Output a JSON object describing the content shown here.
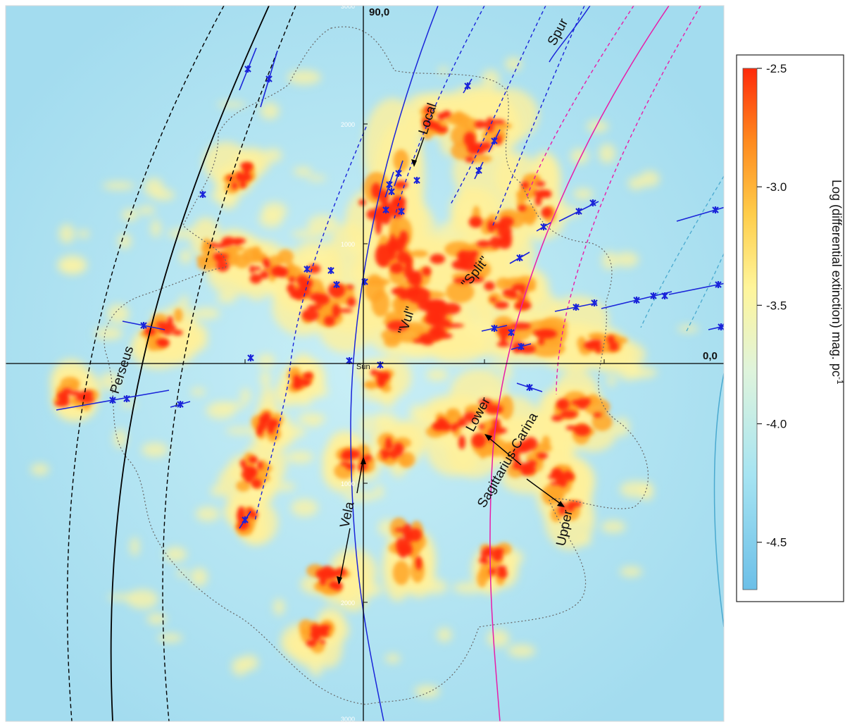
{
  "map": {
    "center_label": "Sun",
    "coord_top": "90,0",
    "coord_right": "0,0",
    "distance_ticks": [
      "3000",
      "2000",
      "1000",
      "1000",
      "2000",
      "3000"
    ]
  },
  "features": {
    "perseus": "Perseus",
    "local": "Local",
    "spur": "Spur",
    "vul": "\"Vul\"",
    "split": "\"Split\"",
    "vela": "Vela",
    "lower": "Lower",
    "upper": "Upper",
    "sagittarius_carina": "Sagittarius-Carina"
  },
  "colorbar": {
    "title": "Log (differential extinction) mag. pc",
    "title_superscript": "-1",
    "ticks": [
      "-2.5",
      "-3.0",
      "-3.5",
      "-4.0",
      "-4.5"
    ],
    "range": [
      -4.7,
      -2.5
    ],
    "colors": [
      "#6cbfe8",
      "#a6e4f2",
      "#dff4dc",
      "#fff59a",
      "#ffcd4a",
      "#ff8a1e",
      "#ff2a0a"
    ]
  },
  "colors": {
    "perseus_arm": "#000000",
    "local_arm": "#1a24d9",
    "sagittarius_arm": "#e81ca8",
    "scutum_arm": "#4aa9cf",
    "masers": "#1a24d9",
    "dense_dust": "#ff2a0a"
  }
}
